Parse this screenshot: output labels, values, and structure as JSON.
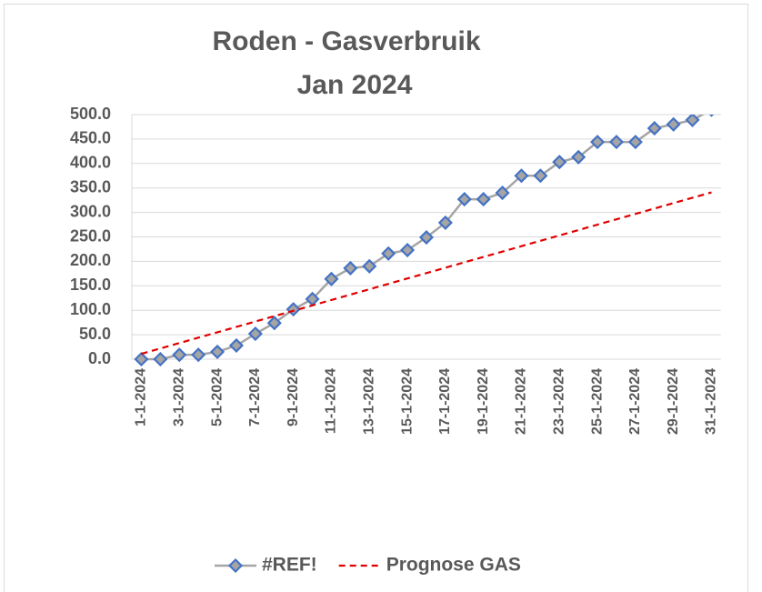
{
  "chart_data": {
    "type": "line",
    "title": "Roden - Gasverbruik",
    "subtitle": "Jan 2024",
    "categories": [
      "1-1-2024",
      null,
      "3-1-2024",
      null,
      "5-1-2024",
      null,
      "7-1-2024",
      null,
      "9-1-2024",
      null,
      "11-1-2024",
      null,
      "13-1-2024",
      null,
      "15-1-2024",
      null,
      "17-1-2024",
      null,
      "19-1-2024",
      null,
      "21-1-2024",
      null,
      "23-1-2024",
      null,
      "25-1-2024",
      null,
      "27-1-2024",
      null,
      "29-1-2024",
      null,
      "31-1-2024"
    ],
    "series": [
      {
        "name": "#REF!",
        "color": "#a5a5a5",
        "marker_color": "#4472c4",
        "marker": "diamond",
        "values": [
          0,
          0,
          9,
          9,
          15,
          28,
          52,
          74,
          102,
          123,
          164,
          186,
          190,
          216,
          223,
          249,
          279,
          327,
          327,
          340,
          375,
          375,
          403,
          413,
          444,
          444,
          444,
          472,
          480,
          489,
          510
        ]
      },
      {
        "name": "Prognose GAS",
        "color": "#e00000",
        "dash": true,
        "values": [
          11,
          22,
          33,
          44,
          55,
          66,
          77,
          88,
          99,
          110,
          121,
          132,
          143,
          154,
          165,
          176,
          187,
          198,
          209,
          220,
          231,
          242,
          253,
          264,
          275,
          286,
          297,
          308,
          319,
          330,
          341
        ]
      }
    ],
    "ylim": [
      0,
      500
    ],
    "yticks": [
      {
        "value": 0,
        "label": "0.0"
      },
      {
        "value": 50,
        "label": "50.0"
      },
      {
        "value": 100,
        "label": "100.0"
      },
      {
        "value": 150,
        "label": "150.0"
      },
      {
        "value": 200,
        "label": "200.0"
      },
      {
        "value": 250,
        "label": "250.0"
      },
      {
        "value": 300,
        "label": "300.0"
      },
      {
        "value": 350,
        "label": "350.0"
      },
      {
        "value": 400,
        "label": "400.0"
      },
      {
        "value": 450,
        "label": "450.0"
      },
      {
        "value": 500,
        "label": "500.0"
      }
    ],
    "grid": true,
    "legend": "bottom"
  }
}
